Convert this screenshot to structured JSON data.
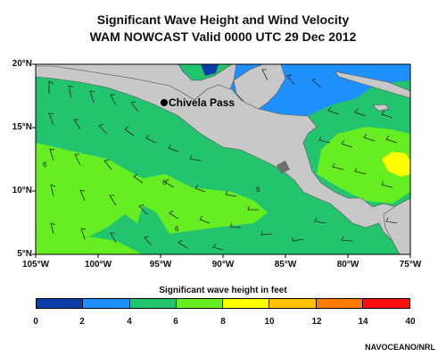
{
  "title_line1": "Significant Wave Height and Wind Velocity",
  "title_line2": "WAM NOWCAST Valid 0000 UTC 29 Dec 2012",
  "place_label": "Chivela Pass",
  "lat_labels": [
    "20°N",
    "15°N",
    "10°N",
    "5°N"
  ],
  "lon_labels": [
    "105°W",
    "100°W",
    "95°W",
    "90°W",
    "85°W",
    "80°W",
    "75°W"
  ],
  "legend_title": "Significant wave height in feet",
  "legend_ticks": [
    "0",
    "2",
    "4",
    "6",
    "8",
    "10",
    "12",
    "14",
    "40"
  ],
  "legend_colors": [
    "#0a3da6",
    "#1e90ff",
    "#22c46e",
    "#66ee22",
    "#ffff00",
    "#ffc000",
    "#ff7a00",
    "#ff1010"
  ],
  "contour_labels": [
    "6",
    "6",
    "6",
    "6"
  ],
  "credit": "NAVOCEANO/NRL",
  "colors": {
    "land": "#c8c8c8",
    "wave_4_6": "#22c46e",
    "wave_6_8": "#66ee22",
    "wave_2_4": "#1e90ff",
    "wave_0_2": "#0a3da6",
    "wave_8_10": "#ffff00"
  }
}
